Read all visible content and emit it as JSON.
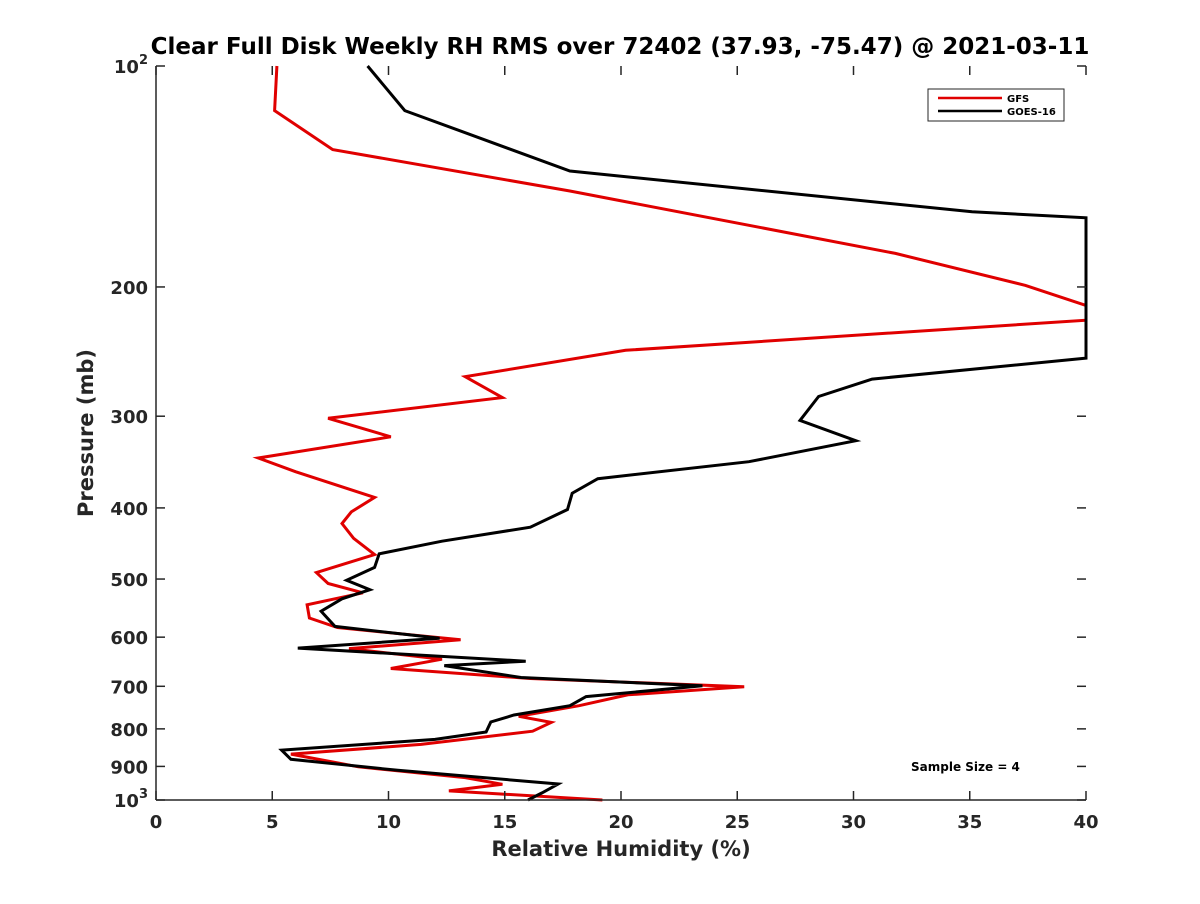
{
  "chart_data": {
    "type": "line",
    "title": "Clear Full Disk Weekly RH RMS over 72402 (37.93, -75.47) @ 2021-03-11",
    "xlabel": "Relative Humidity (%)",
    "ylabel": "Pressure (mb)",
    "xlim": [
      0,
      40
    ],
    "ylim": [
      100,
      1000
    ],
    "yscale": "log",
    "yreversed": true,
    "xticks": [
      {
        "value": 0,
        "label": "0"
      },
      {
        "value": 5,
        "label": "5"
      },
      {
        "value": 10,
        "label": "10"
      },
      {
        "value": 15,
        "label": "15"
      },
      {
        "value": 20,
        "label": "20"
      },
      {
        "value": 25,
        "label": "25"
      },
      {
        "value": 30,
        "label": "30"
      },
      {
        "value": 35,
        "label": "35"
      },
      {
        "value": 40,
        "label": "40"
      }
    ],
    "yticks": [
      {
        "value": 100,
        "base": "10",
        "exp": "2"
      },
      {
        "value": 200,
        "label": "200"
      },
      {
        "value": 300,
        "label": "300"
      },
      {
        "value": 400,
        "label": "400"
      },
      {
        "value": 500,
        "label": "500"
      },
      {
        "value": 600,
        "label": "600"
      },
      {
        "value": 700,
        "label": "700"
      },
      {
        "value": 800,
        "label": "800"
      },
      {
        "value": 900,
        "label": "900"
      },
      {
        "value": 1000,
        "base": "10",
        "exp": "3"
      }
    ],
    "legend": {
      "position": "top-right"
    },
    "annotation": "Sample Size = 4",
    "series": [
      {
        "name": "GFS",
        "color": "#e00000",
        "points": [
          [
            5.2,
            100
          ],
          [
            5.1,
            115
          ],
          [
            7.6,
            130
          ],
          [
            17.8,
            148
          ],
          [
            31.8,
            180
          ],
          [
            37.4,
            199
          ],
          [
            40,
            212
          ],
          [
            40,
            222
          ],
          [
            20.2,
            244
          ],
          [
            13.3,
            265
          ],
          [
            14.9,
            283
          ],
          [
            7.4,
            302
          ],
          [
            10.1,
            320
          ],
          [
            4.4,
            342
          ],
          [
            6.0,
            357
          ],
          [
            9.4,
            387
          ],
          [
            8.4,
            405
          ],
          [
            8.0,
            420
          ],
          [
            8.5,
            440
          ],
          [
            9.4,
            463
          ],
          [
            6.9,
            490
          ],
          [
            7.4,
            507
          ],
          [
            8.9,
            522
          ],
          [
            6.5,
            542
          ],
          [
            6.6,
            565
          ],
          [
            7.8,
            582
          ],
          [
            13.1,
            605
          ],
          [
            8.3,
            622
          ],
          [
            12.3,
            643
          ],
          [
            10.1,
            662
          ],
          [
            16.1,
            683
          ],
          [
            25.3,
            701
          ],
          [
            20.3,
            719
          ],
          [
            18.2,
            744
          ],
          [
            15.6,
            769
          ],
          [
            17.0,
            784
          ],
          [
            16.2,
            806
          ],
          [
            11.4,
            840
          ],
          [
            5.8,
            866
          ],
          [
            8.7,
            901
          ],
          [
            13.3,
            932
          ],
          [
            14.9,
            952
          ],
          [
            12.6,
            972
          ],
          [
            19.2,
            1000
          ]
        ]
      },
      {
        "name": "GOES-16",
        "color": "#000000",
        "points": [
          [
            9.1,
            100
          ],
          [
            10.7,
            115
          ],
          [
            17.8,
            139
          ],
          [
            35.1,
            158
          ],
          [
            40,
            161
          ],
          [
            40,
            250
          ],
          [
            30.8,
            267
          ],
          [
            28.5,
            282
          ],
          [
            27.7,
            304
          ],
          [
            30.1,
            324
          ],
          [
            25.5,
            346
          ],
          [
            19.0,
            365
          ],
          [
            17.9,
            382
          ],
          [
            17.7,
            402
          ],
          [
            16.1,
            425
          ],
          [
            12.3,
            444
          ],
          [
            9.6,
            462
          ],
          [
            9.4,
            482
          ],
          [
            8.2,
            502
          ],
          [
            9.2,
            517
          ],
          [
            8.0,
            532
          ],
          [
            7.1,
            553
          ],
          [
            7.7,
            580
          ],
          [
            12.2,
            602
          ],
          [
            6.1,
            621
          ],
          [
            15.9,
            647
          ],
          [
            12.4,
            656
          ],
          [
            15.7,
            681
          ],
          [
            23.5,
            699
          ],
          [
            18.5,
            723
          ],
          [
            17.8,
            744
          ],
          [
            15.4,
            766
          ],
          [
            14.4,
            783
          ],
          [
            14.2,
            808
          ],
          [
            12.0,
            827
          ],
          [
            5.4,
            855
          ],
          [
            5.8,
            880
          ],
          [
            10.4,
            911
          ],
          [
            17.3,
            951
          ],
          [
            16.6,
            978
          ],
          [
            16.0,
            1000
          ]
        ]
      }
    ]
  }
}
